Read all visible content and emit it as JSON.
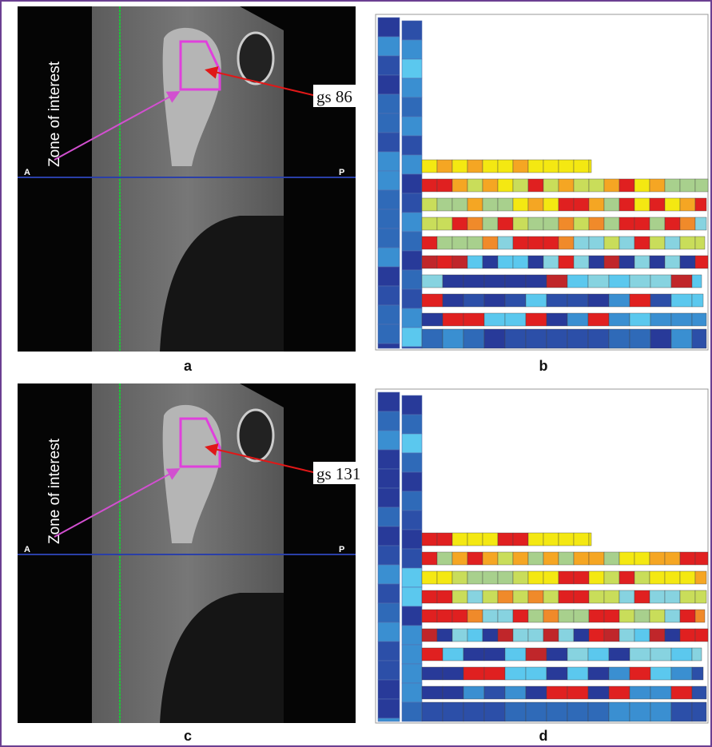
{
  "panels": [
    {
      "label": "a",
      "annotation": "Zone of interest",
      "gs_label": "gs 86",
      "left_marker": "A",
      "right_marker": "P"
    },
    {
      "label": "b"
    },
    {
      "label": "c",
      "annotation": "Zone of interest",
      "gs_label": "gs 131",
      "left_marker": "A",
      "right_marker": "P"
    },
    {
      "label": "d"
    }
  ]
}
